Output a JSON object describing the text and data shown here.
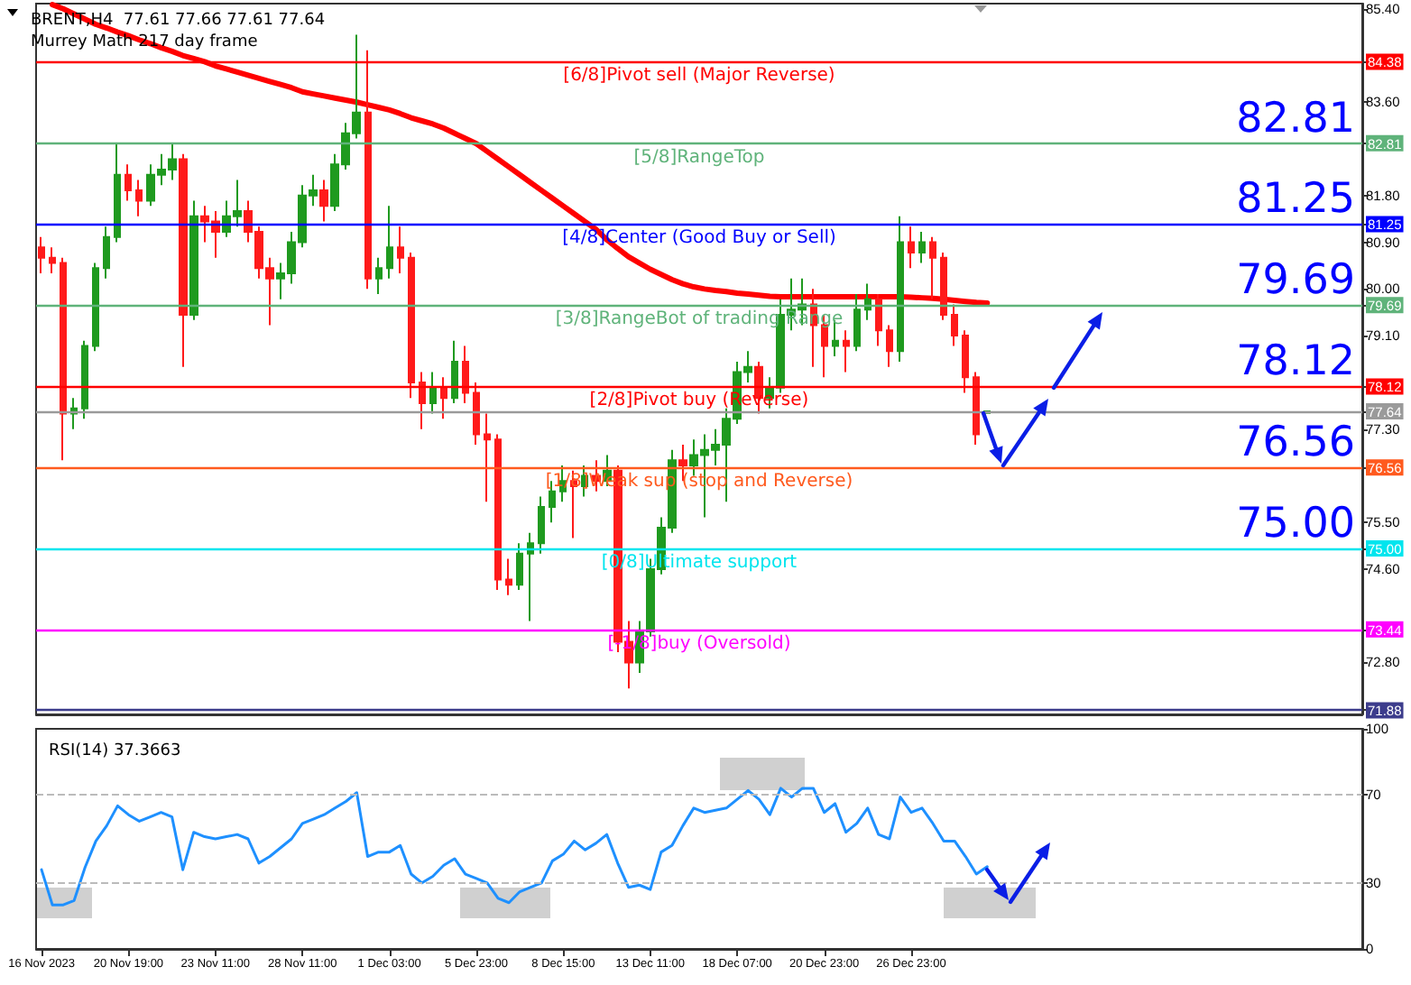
{
  "chart_data": [
    {
      "type": "candlestick",
      "title": "BRENT,H4  77.61 77.66 77.61 77.64",
      "subtitle": "Murrey Math 217 day frame",
      "categories": [
        null,
        null,
        null,
        null,
        null,
        null,
        null,
        null,
        null,
        null,
        null,
        null,
        null,
        null,
        null,
        null,
        null,
        null,
        null,
        null,
        null,
        null,
        null,
        null,
        null,
        null,
        null,
        null,
        null,
        null,
        null,
        null,
        null,
        null,
        null,
        null,
        null,
        null,
        null,
        null,
        null,
        null,
        null,
        null,
        null,
        null,
        null,
        null,
        null,
        null,
        null,
        null,
        null,
        null,
        null,
        null,
        null,
        null,
        null,
        null,
        null,
        null,
        null,
        null,
        null,
        null,
        null,
        null,
        null,
        null,
        null,
        null,
        null,
        null,
        null,
        null,
        null,
        null,
        null,
        null,
        null,
        null,
        null,
        null,
        null,
        null,
        null,
        null,
        null,
        null,
        null,
        null,
        null,
        null,
        null,
        null,
        null,
        null,
        null,
        null,
        null,
        null,
        null,
        null,
        null,
        null,
        null,
        null,
        null,
        null,
        null,
        null,
        null,
        null,
        null,
        null,
        null,
        null,
        null,
        null,
        null,
        null
      ],
      "ohlc": [
        [
          80.8,
          81.0,
          80.3,
          80.6
        ],
        [
          80.6,
          80.8,
          80.3,
          80.5
        ],
        [
          80.5,
          80.6,
          76.7,
          77.6
        ],
        [
          77.6,
          77.9,
          77.3,
          77.7
        ],
        [
          77.7,
          79.0,
          77.5,
          78.9
        ],
        [
          78.9,
          80.5,
          78.8,
          80.4
        ],
        [
          80.4,
          81.2,
          80.2,
          81.0
        ],
        [
          81.0,
          82.8,
          80.9,
          82.2
        ],
        [
          82.2,
          82.4,
          81.7,
          81.9
        ],
        [
          81.9,
          82.1,
          81.4,
          81.7
        ],
        [
          81.7,
          82.4,
          81.6,
          82.2
        ],
        [
          82.2,
          82.6,
          82.0,
          82.3
        ],
        [
          82.3,
          82.8,
          82.1,
          82.5
        ],
        [
          82.5,
          82.6,
          78.5,
          79.5
        ],
        [
          79.5,
          81.7,
          79.4,
          81.4
        ],
        [
          81.4,
          81.6,
          80.9,
          81.3
        ],
        [
          81.3,
          81.5,
          80.6,
          81.1
        ],
        [
          81.1,
          81.7,
          81.0,
          81.4
        ],
        [
          81.4,
          82.1,
          81.2,
          81.5
        ],
        [
          81.5,
          81.7,
          80.9,
          81.1
        ],
        [
          81.1,
          81.2,
          80.2,
          80.4
        ],
        [
          80.4,
          80.6,
          79.3,
          80.2
        ],
        [
          80.2,
          80.5,
          79.8,
          80.3
        ],
        [
          80.3,
          81.1,
          80.1,
          80.9
        ],
        [
          80.9,
          82.0,
          80.8,
          81.8
        ],
        [
          81.8,
          82.2,
          81.6,
          81.9
        ],
        [
          81.9,
          82.1,
          81.3,
          81.6
        ],
        [
          81.6,
          82.6,
          81.5,
          82.4
        ],
        [
          82.4,
          83.2,
          82.3,
          83.0
        ],
        [
          83.0,
          84.9,
          82.9,
          83.4
        ],
        [
          83.4,
          84.6,
          80.0,
          80.2
        ],
        [
          80.2,
          80.6,
          79.9,
          80.4
        ],
        [
          80.4,
          81.6,
          80.2,
          80.8
        ],
        [
          80.8,
          81.2,
          80.3,
          80.6
        ],
        [
          80.6,
          80.7,
          77.9,
          78.2
        ],
        [
          78.2,
          78.4,
          77.3,
          77.8
        ],
        [
          77.8,
          78.4,
          77.6,
          78.1
        ],
        [
          78.1,
          78.3,
          77.5,
          77.9
        ],
        [
          77.9,
          79.0,
          77.8,
          78.6
        ],
        [
          78.6,
          78.9,
          77.8,
          78.0
        ],
        [
          78.0,
          78.2,
          77.0,
          77.2
        ],
        [
          77.2,
          77.6,
          75.9,
          77.1
        ],
        [
          77.1,
          77.2,
          74.2,
          74.4
        ],
        [
          74.4,
          74.8,
          74.1,
          74.3
        ],
        [
          74.3,
          75.1,
          74.2,
          74.9
        ],
        [
          74.9,
          75.3,
          73.6,
          75.1
        ],
        [
          75.1,
          76.0,
          74.9,
          75.8
        ],
        [
          75.8,
          76.3,
          75.5,
          76.1
        ],
        [
          76.1,
          76.6,
          75.9,
          76.3
        ],
        [
          76.3,
          76.5,
          75.2,
          76.2
        ],
        [
          76.2,
          76.6,
          76.0,
          76.4
        ],
        [
          76.4,
          76.7,
          76.1,
          76.3
        ],
        [
          76.3,
          76.8,
          76.2,
          76.5
        ],
        [
          76.5,
          76.6,
          73.0,
          73.2
        ],
        [
          73.2,
          73.6,
          72.3,
          72.8
        ],
        [
          72.8,
          73.6,
          72.6,
          73.4
        ],
        [
          73.4,
          74.8,
          73.3,
          74.6
        ],
        [
          74.6,
          75.6,
          74.5,
          75.4
        ],
        [
          75.4,
          76.9,
          75.3,
          76.7
        ],
        [
          76.7,
          77.0,
          76.3,
          76.6
        ],
        [
          76.6,
          77.1,
          76.4,
          76.8
        ],
        [
          76.8,
          77.2,
          75.6,
          76.9
        ],
        [
          76.9,
          77.3,
          76.6,
          77.0
        ],
        [
          77.0,
          77.7,
          75.9,
          77.5
        ],
        [
          77.5,
          78.6,
          77.4,
          78.4
        ],
        [
          78.4,
          78.8,
          78.2,
          78.5
        ],
        [
          78.5,
          78.6,
          77.6,
          77.9
        ],
        [
          77.9,
          78.3,
          77.7,
          78.1
        ],
        [
          78.1,
          79.8,
          78.0,
          79.5
        ],
        [
          79.5,
          80.2,
          79.2,
          79.6
        ],
        [
          79.6,
          80.2,
          79.3,
          79.7
        ],
        [
          79.7,
          80.0,
          78.5,
          79.3
        ],
        [
          79.3,
          79.5,
          78.3,
          78.9
        ],
        [
          78.9,
          79.4,
          78.7,
          79.0
        ],
        [
          79.0,
          79.2,
          78.4,
          78.9
        ],
        [
          78.9,
          79.9,
          78.8,
          79.6
        ],
        [
          79.6,
          80.1,
          79.4,
          79.8
        ],
        [
          79.8,
          79.9,
          78.9,
          79.2
        ],
        [
          79.2,
          79.3,
          78.5,
          78.8
        ],
        [
          78.8,
          81.4,
          78.6,
          80.9
        ],
        [
          80.9,
          81.2,
          80.4,
          80.7
        ],
        [
          80.7,
          81.1,
          80.5,
          80.9
        ],
        [
          80.9,
          81.0,
          79.8,
          80.6
        ],
        [
          80.6,
          80.7,
          79.4,
          79.5
        ],
        [
          79.5,
          79.7,
          78.9,
          79.1
        ],
        [
          79.1,
          79.2,
          78.0,
          78.3
        ],
        [
          78.3,
          78.4,
          77.0,
          77.2
        ],
        [
          77.61,
          77.66,
          77.61,
          77.64
        ],
        null,
        null,
        null,
        null,
        null,
        null,
        null,
        null,
        null,
        null,
        null,
        null,
        null,
        null,
        null,
        null,
        null,
        null,
        null,
        null,
        null,
        null,
        null,
        null,
        null,
        null,
        null,
        null,
        null,
        null,
        null,
        null,
        null,
        null
      ],
      "series": [
        {
          "type": "line",
          "color": "#ff0000",
          "values": [
            null,
            85.48,
            85.4,
            85.3,
            85.2,
            85.1,
            85.03,
            84.95,
            84.88,
            84.8,
            84.73,
            84.65,
            84.58,
            84.5,
            84.44,
            84.38,
            84.3,
            84.24,
            84.18,
            84.12,
            84.06,
            84.0,
            83.94,
            83.88,
            83.8,
            83.76,
            83.72,
            83.68,
            83.64,
            83.6,
            83.55,
            83.5,
            83.45,
            83.38,
            83.3,
            83.24,
            83.18,
            83.1,
            83.0,
            82.9,
            82.8,
            82.65,
            82.5,
            82.35,
            82.2,
            82.05,
            81.9,
            81.75,
            81.6,
            81.45,
            81.3,
            81.15,
            80.95,
            80.78,
            80.62,
            80.5,
            80.38,
            80.28,
            80.18,
            80.1,
            80.04,
            80.0,
            79.97,
            79.95,
            79.92,
            79.9,
            79.88,
            79.86,
            79.85,
            79.85,
            79.85,
            79.85,
            79.85,
            79.85,
            79.85,
            79.85,
            79.85,
            79.85,
            79.85,
            79.85,
            79.84,
            79.83,
            79.82,
            79.8,
            79.78,
            79.76,
            79.74,
            79.73,
            null,
            null,
            null,
            null,
            null,
            null,
            null,
            null,
            null,
            null,
            null,
            null,
            null,
            null,
            null,
            null,
            null,
            null,
            null,
            null,
            null,
            null,
            null,
            null,
            null,
            null,
            null,
            null,
            null,
            null,
            null,
            null,
            null,
            null
          ]
        }
      ],
      "ref_lines": [
        {
          "axis": "y",
          "value": 84.38,
          "label": "[6/8]Pivot sell (Major Reverse)",
          "color": "#ff0000"
        },
        {
          "axis": "y",
          "value": 82.81,
          "label": "[5/8]RangeTop",
          "color": "#5fb37a"
        },
        {
          "axis": "y",
          "value": 81.25,
          "label": "[4/8]Center (Good Buy or Sell)",
          "color": "#0000ff"
        },
        {
          "axis": "y",
          "value": 79.69,
          "label": "[3/8]RangeBot of trading Range",
          "color": "#5fb37a"
        },
        {
          "axis": "y",
          "value": 78.12,
          "label": "[2/8]Pivot buy (Reverse)",
          "color": "#ff0000"
        },
        {
          "axis": "y",
          "value": 77.64,
          "color": "#9a9a9a"
        },
        {
          "axis": "y",
          "value": 76.56,
          "label": "[1/8]Weak sup (stop and Reverse)",
          "color": "#ff5a1e"
        },
        {
          "axis": "y",
          "value": 75.0,
          "label": "[0/8]Ultimate support",
          "color": "#00e5ee"
        },
        {
          "axis": "y",
          "value": 73.44,
          "label": "[-1/8]buy (Oversold)",
          "color": "#ff00ff"
        },
        {
          "axis": "y",
          "value": 71.88,
          "color": "#3c3c8c"
        }
      ],
      "annotations": [
        {
          "text": "82.81",
          "y": 82.81
        },
        {
          "text": "81.25",
          "y": 81.25
        },
        {
          "text": "79.69",
          "y": 79.69
        },
        {
          "text": "78.12",
          "y": 78.12
        },
        {
          "text": "76.56",
          "y": 76.56
        },
        {
          "text": "75.00",
          "y": 75.0
        }
      ],
      "ylim": [
        71.8,
        85.5
      ],
      "yticks": [
        {
          "value": 71.88,
          "label": "71.88"
        },
        {
          "value": 72.8,
          "label": "72.80"
        },
        {
          "value": 73.44,
          "label": "73.44"
        },
        {
          "value": 74.6,
          "label": "74.60"
        },
        {
          "value": 75.0,
          "label": "75.00"
        },
        {
          "value": 75.5,
          "label": "75.50"
        },
        {
          "value": 76.56,
          "label": "76.56"
        },
        {
          "value": 77.3,
          "label": "77.30"
        },
        {
          "value": 77.64,
          "label": "77.64"
        },
        {
          "value": 78.12,
          "label": "78.12"
        },
        {
          "value": 79.1,
          "label": "79.10"
        },
        {
          "value": 79.69,
          "label": "79.69"
        },
        {
          "value": 80.0,
          "label": "80.00"
        },
        {
          "value": 80.9,
          "label": "80.90"
        },
        {
          "value": 81.25,
          "label": "81.25"
        },
        {
          "value": 81.8,
          "label": "81.80"
        },
        {
          "value": 82.81,
          "label": "82.81"
        },
        {
          "value": 83.6,
          "label": "83.60"
        },
        {
          "value": 84.38,
          "label": "84.38"
        },
        {
          "value": 85.4,
          "label": "85.40"
        }
      ],
      "tick_labels": "y"
    },
    {
      "type": "line",
      "title": "RSI(14) 37.3663",
      "categories": [
        "16 Nov 2023",
        null,
        null,
        null,
        null,
        null,
        null,
        null,
        "20 Nov 19:00",
        null,
        null,
        null,
        null,
        null,
        null,
        null,
        "23 Nov 11:00",
        null,
        null,
        null,
        null,
        null,
        null,
        null,
        "28 Nov 11:00",
        null,
        null,
        null,
        null,
        null,
        null,
        null,
        "1 Dec 03:00",
        null,
        null,
        null,
        null,
        null,
        null,
        null,
        "5 Dec 23:00",
        null,
        null,
        null,
        null,
        null,
        null,
        null,
        "8 Dec 15:00",
        null,
        null,
        null,
        null,
        null,
        null,
        null,
        "13 Dec 11:00",
        null,
        null,
        null,
        null,
        null,
        null,
        null,
        "18 Dec 07:00",
        null,
        null,
        null,
        null,
        null,
        null,
        null,
        "20 Dec 23:00",
        null,
        null,
        null,
        null,
        null,
        null,
        null,
        "26 Dec 23:00",
        null,
        null,
        null,
        null,
        null,
        null,
        null,
        null,
        null,
        null,
        null,
        null,
        null,
        null,
        null,
        null,
        null,
        null,
        null,
        null,
        null,
        null,
        null,
        null,
        null,
        null,
        null,
        null,
        null,
        null,
        null,
        null,
        null,
        null,
        null,
        null,
        null,
        null,
        null,
        null,
        null
      ],
      "series": [
        {
          "color": "#1e90ff",
          "values": [
            36,
            20,
            20,
            22,
            37,
            49,
            56,
            65,
            61,
            58,
            60,
            62,
            60,
            36,
            53,
            51,
            50,
            51,
            52,
            50,
            39,
            42,
            46,
            50,
            57,
            59,
            61,
            64,
            67,
            71,
            42,
            44,
            44,
            47,
            34,
            30,
            33,
            38,
            41,
            34,
            32,
            30,
            23,
            21,
            26,
            28,
            30,
            40,
            43,
            49,
            45,
            48,
            52,
            39,
            28,
            29,
            27,
            44,
            47,
            56,
            64,
            62,
            63,
            64,
            68,
            72,
            68,
            61,
            73,
            69,
            73,
            73,
            62,
            66,
            53,
            57,
            64,
            52,
            50,
            69,
            62,
            64,
            57,
            49,
            49,
            42,
            34,
            37.3663,
            null,
            null,
            null,
            null,
            null,
            null,
            null,
            null,
            null,
            null,
            null,
            null,
            null,
            null,
            null,
            null,
            null,
            null,
            null,
            null,
            null,
            null,
            null,
            null,
            null,
            null,
            null,
            null,
            null,
            null,
            null,
            null,
            null,
            null
          ]
        }
      ],
      "ref_lines": [
        {
          "axis": "y",
          "value": 30,
          "line_style": "dashed"
        },
        {
          "axis": "y",
          "value": 70,
          "line_style": "dashed"
        }
      ],
      "ylim": [
        0,
        100
      ],
      "yticks": [
        0,
        30,
        70,
        100
      ],
      "marker": "none"
    }
  ]
}
